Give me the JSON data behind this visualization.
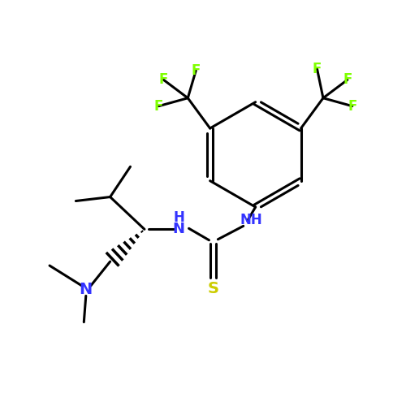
{
  "bg_color": "#ffffff",
  "bond_color": "#000000",
  "F_color": "#7fff00",
  "N_color": "#3333ff",
  "S_color": "#cccc00",
  "line_width": 2.2,
  "figsize": [
    5.0,
    5.0
  ],
  "dpi": 100,
  "xlim": [
    0,
    10
  ],
  "ylim": [
    0,
    10
  ]
}
